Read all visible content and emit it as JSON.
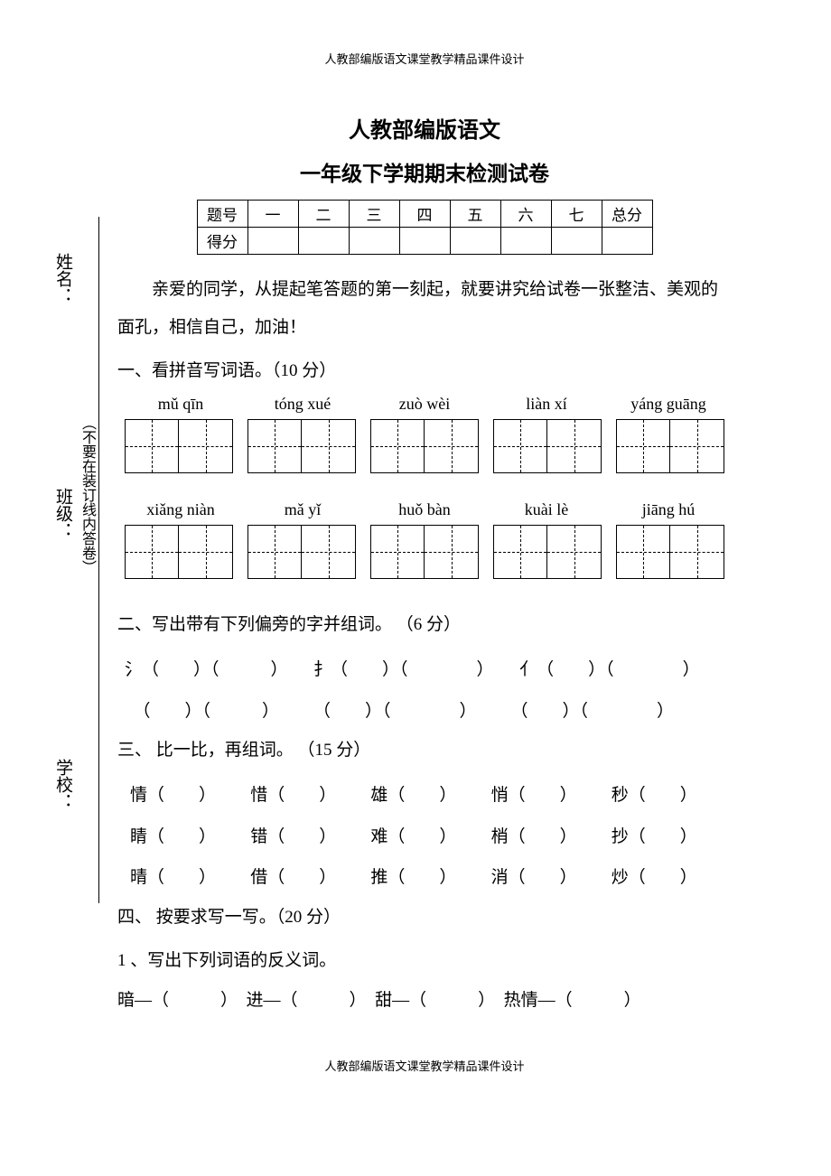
{
  "header": "人教部编版语文课堂教学精品课件设计",
  "footer": "人教部编版语文课堂教学精品课件设计",
  "title1": "人教部编版语文",
  "title2": "一年级下学期期末检测试卷",
  "score_table": {
    "headers": [
      "题号",
      "一",
      "二",
      "三",
      "四",
      "五",
      "六",
      "七",
      "总分"
    ],
    "row2_label": "得分"
  },
  "intro": "亲爱的同学，从提起笔答题的第一刻起，就要讲究给试卷一张整洁、美观的面孔，相信自己，加油！",
  "side": {
    "name": "姓名：",
    "class": "班级：",
    "school": "学校：",
    "note": "（不要在装订线内答卷）"
  },
  "q1": {
    "heading": "一、看拼音写词语。（10 分）",
    "row1": [
      "mǔ qīn",
      "tóng xué",
      "zuò wèi",
      "liàn xí",
      "yáng guāng"
    ],
    "row2": [
      "xiǎng niàn",
      "mǎ yǐ",
      "huǒ bàn",
      "kuài lè",
      "jiāng hú"
    ]
  },
  "q2": {
    "heading": "二、写出带有下列偏旁的字并组词。 （6 分）",
    "radicals": [
      "氵",
      "扌",
      "亻"
    ]
  },
  "q3": {
    "heading": "三、 比一比，再组词。 （15 分）",
    "rows": [
      [
        "情",
        "惜",
        "雄",
        "悄",
        "秒"
      ],
      [
        "睛",
        "错",
        "难",
        "梢",
        "抄"
      ],
      [
        "晴",
        "借",
        "推",
        "消",
        "炒"
      ]
    ]
  },
  "q4": {
    "heading": "四、 按要求写一写。（20 分）",
    "sub1": "1 、写出下列词语的反义词。",
    "antonyms": [
      "暗",
      "进",
      "甜",
      "热情"
    ]
  }
}
